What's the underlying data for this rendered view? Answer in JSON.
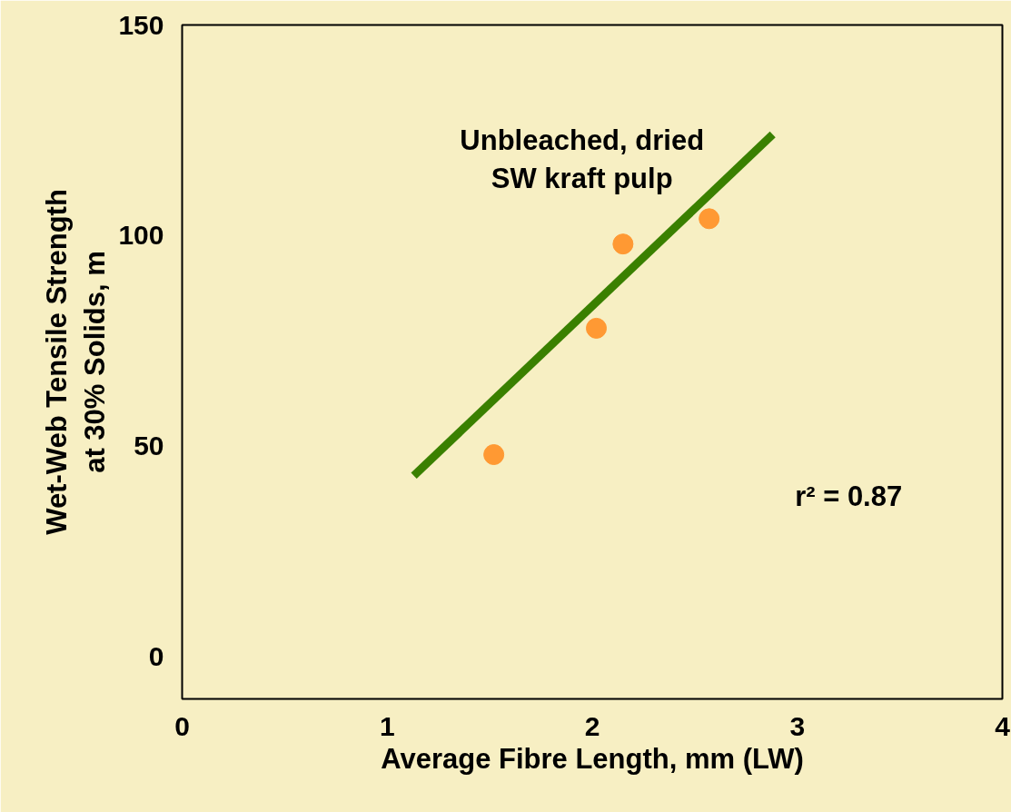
{
  "chart_data": {
    "type": "scatter",
    "xlabel": "Average Fibre Length, mm (LW)",
    "ylabel": "Wet-Web Tensile Strength\nat 30% Solids, m",
    "annotations": [
      "Unbleached, dried\nSW kraft pulp",
      "r² = 0.87"
    ],
    "series": [
      {
        "color": "#ff9933",
        "x": [
          1.52,
          2.02,
          2.15,
          2.57
        ],
        "values": [
          48,
          78,
          98,
          104
        ],
        "marker": "circle"
      },
      {
        "type": "line",
        "color": "#3a8000",
        "x": [
          1.13,
          2.88
        ],
        "values": [
          43,
          124
        ]
      }
    ],
    "xlim": [
      0,
      4
    ],
    "ylim": [
      -10,
      150
    ],
    "xticks": [
      0,
      1,
      2,
      3,
      4
    ],
    "yticks": [
      0,
      50,
      100,
      150
    ],
    "grid": false
  }
}
